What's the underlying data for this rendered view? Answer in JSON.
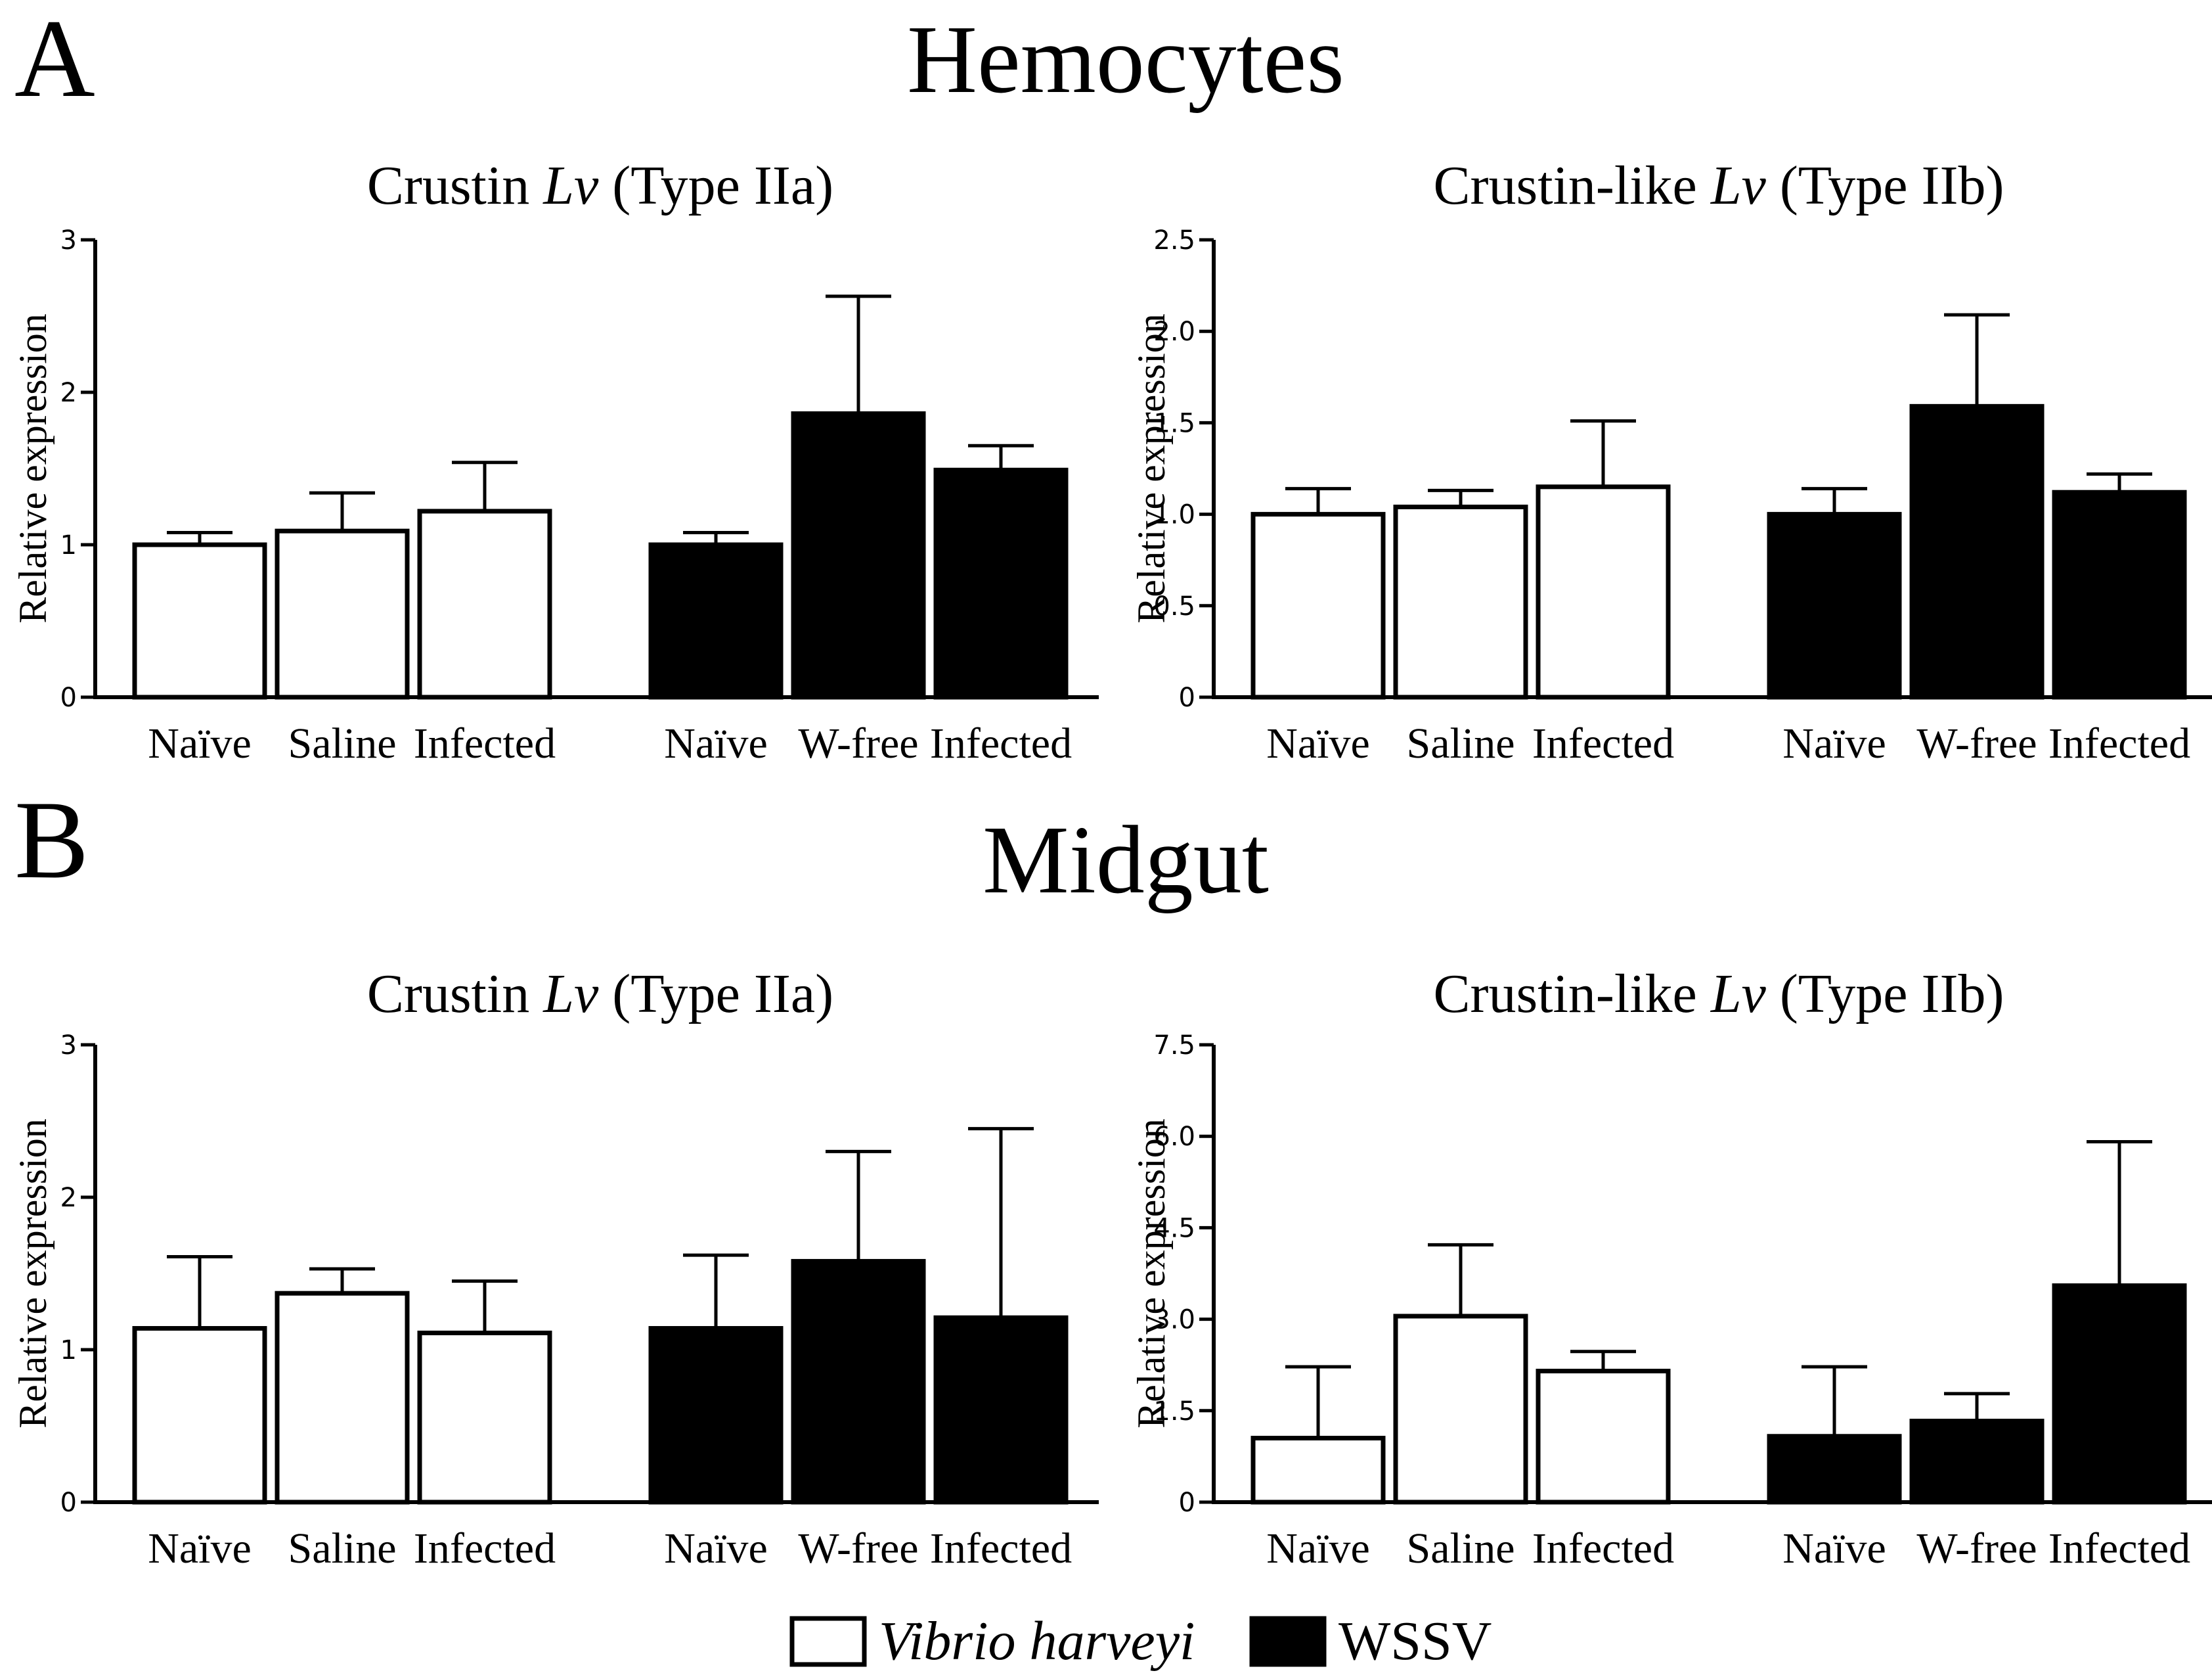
{
  "figure": {
    "panels": [
      {
        "letter": "A",
        "title": "Hemocytes"
      },
      {
        "letter": "B",
        "title": "Midgut"
      }
    ],
    "legend": [
      {
        "label": "Vibrio harveyi",
        "italic": true,
        "fill": "#ffffff"
      },
      {
        "label": "WSSV",
        "italic": false,
        "fill": "#000000"
      }
    ]
  },
  "chart_data": [
    {
      "type": "bar",
      "panel": "Hemocytes",
      "title_parts": [
        "Crustin ",
        "Lv",
        " (Type IIa)"
      ],
      "ylabel": "Relative expression",
      "ylim": [
        0,
        3
      ],
      "yticks": [
        "0",
        "1",
        "2",
        "3"
      ],
      "categories": [
        "Naïve",
        "Saline",
        "Infected",
        "Naïve",
        "W-free",
        "Infected"
      ],
      "groups": [
        "Vibrio harveyi",
        "Vibrio harveyi",
        "Vibrio harveyi",
        "WSSV",
        "WSSV",
        "WSSV"
      ],
      "values": [
        1.0,
        1.09,
        1.22,
        1.0,
        1.86,
        1.49
      ],
      "errors": [
        0.08,
        0.25,
        0.32,
        0.08,
        0.77,
        0.16
      ]
    },
    {
      "type": "bar",
      "panel": "Hemocytes",
      "title_parts": [
        "Crustin-like ",
        "Lv",
        " (Type IIb)"
      ],
      "ylabel": "Relative expression",
      "ylim": [
        0,
        2.5
      ],
      "yticks": [
        "0",
        "0.5",
        "1.0",
        "1.5",
        "2.0",
        "2.5"
      ],
      "categories": [
        "Naïve",
        "Saline",
        "Infected",
        "Naïve",
        "W-free",
        "Infected"
      ],
      "groups": [
        "Vibrio harveyi",
        "Vibrio harveyi",
        "Vibrio harveyi",
        "WSSV",
        "WSSV",
        "WSSV"
      ],
      "values": [
        1.0,
        1.04,
        1.15,
        1.0,
        1.59,
        1.12
      ],
      "errors": [
        0.14,
        0.09,
        0.36,
        0.14,
        0.5,
        0.1
      ]
    },
    {
      "type": "bar",
      "panel": "Midgut",
      "title_parts": [
        "Crustin ",
        "Lv",
        " (Type IIa)"
      ],
      "ylabel": "Relative expression",
      "ylim": [
        0,
        3
      ],
      "yticks": [
        "0",
        "1",
        "2",
        "3"
      ],
      "categories": [
        "Naïve",
        "Saline",
        "Infected",
        "Naïve",
        "W-free",
        "Infected"
      ],
      "groups": [
        "Vibrio harveyi",
        "Vibrio harveyi",
        "Vibrio harveyi",
        "WSSV",
        "WSSV",
        "WSSV"
      ],
      "values": [
        1.14,
        1.37,
        1.11,
        1.14,
        1.58,
        1.21
      ],
      "errors": [
        0.47,
        0.16,
        0.34,
        0.48,
        0.72,
        1.24
      ]
    },
    {
      "type": "bar",
      "panel": "Midgut",
      "title_parts": [
        "Crustin-like ",
        "Lv",
        " (Type IIb)"
      ],
      "ylabel": "Relative expression",
      "ylim": [
        0,
        7.5
      ],
      "yticks": [
        "0",
        "1.5",
        "3.0",
        "4.5",
        "6.0",
        "7.5"
      ],
      "categories": [
        "Naïve",
        "Saline",
        "Infected",
        "Naïve",
        "W-free",
        "Infected"
      ],
      "groups": [
        "Vibrio harveyi",
        "Vibrio harveyi",
        "Vibrio harveyi",
        "WSSV",
        "WSSV",
        "WSSV"
      ],
      "values": [
        1.05,
        3.05,
        2.15,
        1.08,
        1.33,
        3.55
      ],
      "errors": [
        1.17,
        1.17,
        0.32,
        1.14,
        0.45,
        2.36
      ]
    }
  ]
}
